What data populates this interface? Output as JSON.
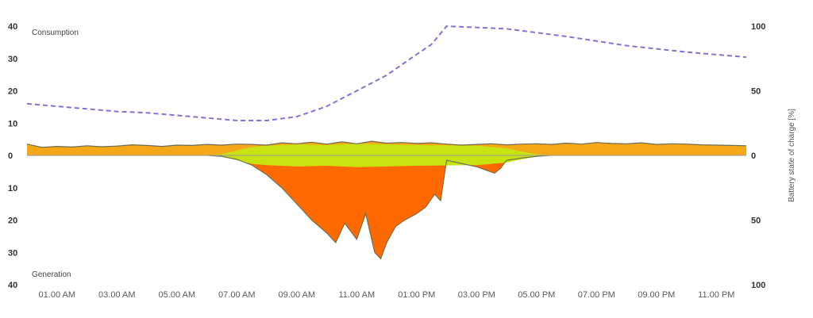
{
  "chart_data": {
    "type": "area",
    "labels": {
      "consumption": "Consumption",
      "generation": "Generation"
    },
    "y2label": "Battery state of charge [%]",
    "x_ticks": [
      "01.00 AM",
      "03.00 AM",
      "05.00 AM",
      "07.00 AM",
      "09.00 AM",
      "11.00 AM",
      "01.00 PM",
      "03.00 PM",
      "05.00 PM",
      "07.00 PM",
      "09.00 PM",
      "11.00 PM"
    ],
    "x_range_hours": [
      0,
      24
    ],
    "y_left_ticks_top": [
      "40",
      "30",
      "20",
      "10",
      "0"
    ],
    "y_left_ticks_bottom": [
      "10",
      "20",
      "30",
      "40"
    ],
    "y_right_ticks_top": [
      "100",
      "50",
      "0"
    ],
    "y_right_ticks_bottom": [
      "50",
      "100"
    ],
    "ylim_consumption": [
      0,
      40
    ],
    "ylim_generation": [
      0,
      40
    ],
    "y2lim": [
      0,
      100
    ],
    "colors": {
      "grid_consumption": "#f5a817",
      "solar_self_use": "#c8e312",
      "solar_to_battery": "#ff6a00",
      "outline": "#6b6b52",
      "battery_line": "#7b75d6"
    },
    "series": [
      {
        "id": "battery_soc",
        "values": [
          [
            0,
            40
          ],
          [
            1,
            38
          ],
          [
            2,
            36
          ],
          [
            3,
            34
          ],
          [
            4,
            33
          ],
          [
            5,
            31
          ],
          [
            6,
            29
          ],
          [
            7,
            27
          ],
          [
            8,
            27
          ],
          [
            9,
            30
          ],
          [
            10,
            38
          ],
          [
            11,
            50
          ],
          [
            12,
            62
          ],
          [
            12.8,
            75
          ],
          [
            13.5,
            86
          ],
          [
            14,
            100
          ],
          [
            16,
            98
          ],
          [
            18,
            92
          ],
          [
            20,
            85
          ],
          [
            22,
            80
          ],
          [
            24,
            76
          ]
        ]
      },
      {
        "id": "consumption_total",
        "values": [
          [
            0,
            3.5
          ],
          [
            0.5,
            2.5
          ],
          [
            1,
            2.8
          ],
          [
            1.5,
            2.6
          ],
          [
            2,
            3
          ],
          [
            2.5,
            2.7
          ],
          [
            3,
            2.9
          ],
          [
            3.5,
            3.3
          ],
          [
            4,
            3.1
          ],
          [
            4.5,
            2.8
          ],
          [
            5,
            3.2
          ],
          [
            5.5,
            3.1
          ],
          [
            6,
            3.4
          ],
          [
            6.5,
            3.2
          ],
          [
            7,
            3.5
          ],
          [
            7.5,
            3.4
          ],
          [
            8,
            3.2
          ],
          [
            8.5,
            3.9
          ],
          [
            9,
            3.6
          ],
          [
            9.5,
            4.1
          ],
          [
            10,
            3.5
          ],
          [
            10.5,
            4.2
          ],
          [
            11,
            3.6
          ],
          [
            11.5,
            4.4
          ],
          [
            12,
            3.8
          ],
          [
            12.5,
            4
          ],
          [
            13,
            3.7
          ],
          [
            13.5,
            3.9
          ],
          [
            14,
            3.5
          ],
          [
            14.5,
            3.2
          ],
          [
            15,
            3.4
          ],
          [
            15.5,
            3.6
          ],
          [
            16,
            3.3
          ],
          [
            16.5,
            3.5
          ],
          [
            17,
            3.6
          ],
          [
            17.5,
            3.4
          ],
          [
            18,
            3.8
          ],
          [
            18.5,
            3.5
          ],
          [
            19,
            4
          ],
          [
            19.5,
            3.7
          ],
          [
            20,
            3.6
          ],
          [
            20.5,
            3.9
          ],
          [
            21,
            3.4
          ],
          [
            21.5,
            3.6
          ],
          [
            22,
            3.5
          ],
          [
            22.5,
            3.3
          ],
          [
            23,
            3.2
          ],
          [
            23.5,
            3.1
          ],
          [
            24,
            3
          ]
        ]
      },
      {
        "id": "consumption_from_solar",
        "values": [
          [
            6,
            0
          ],
          [
            6.5,
            0.4
          ],
          [
            7,
            1.5
          ],
          [
            7.5,
            2.6
          ],
          [
            8,
            3
          ],
          [
            9,
            3.4
          ],
          [
            10,
            3.2
          ],
          [
            11,
            3.6
          ],
          [
            12,
            3.4
          ],
          [
            13,
            3.2
          ],
          [
            14,
            3.1
          ],
          [
            15,
            3
          ],
          [
            15.5,
            2.6
          ],
          [
            16,
            2.2
          ],
          [
            16.5,
            1.2
          ],
          [
            17,
            0.4
          ],
          [
            17.5,
            0
          ]
        ]
      },
      {
        "id": "generation_total",
        "values": [
          [
            6,
            0
          ],
          [
            6.5,
            0.3
          ],
          [
            7,
            1.2
          ],
          [
            7.5,
            3
          ],
          [
            8,
            6
          ],
          [
            8.5,
            10
          ],
          [
            9,
            15
          ],
          [
            9.5,
            20
          ],
          [
            10,
            24
          ],
          [
            10.3,
            27
          ],
          [
            10.6,
            21
          ],
          [
            11,
            26
          ],
          [
            11.3,
            18
          ],
          [
            11.6,
            30
          ],
          [
            11.8,
            32
          ],
          [
            12,
            27
          ],
          [
            12.3,
            22
          ],
          [
            12.6,
            20
          ],
          [
            13,
            18
          ],
          [
            13.3,
            16
          ],
          [
            13.6,
            12
          ],
          [
            13.8,
            14
          ],
          [
            14,
            1.5
          ],
          [
            14.5,
            2.5
          ],
          [
            15,
            3.5
          ],
          [
            15.3,
            4.5
          ],
          [
            15.6,
            5.5
          ],
          [
            15.8,
            4
          ],
          [
            16,
            1.5
          ],
          [
            16.5,
            0.8
          ],
          [
            17,
            0.3
          ],
          [
            17.5,
            0
          ]
        ]
      }
    ],
    "grid": false,
    "legend": "none"
  }
}
